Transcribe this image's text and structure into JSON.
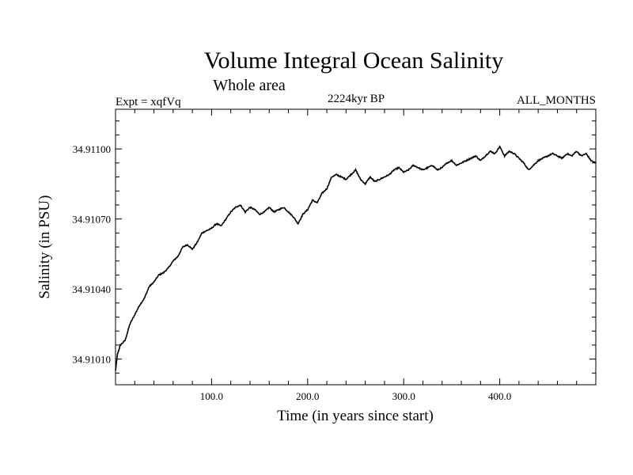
{
  "chart_data": {
    "type": "line",
    "title": "Volume Integral Ocean Salinity",
    "subtitle": "Whole area",
    "left_label": "Expt = xqfVq",
    "center_label": "2224kyr BP",
    "right_label": "ALL_MONTHS",
    "xlabel": "Time (in years since start)",
    "ylabel": "Salinity (in PSU)",
    "xlim": [
      0,
      500
    ],
    "ylim": [
      34.90999,
      34.91117
    ],
    "x_ticks": [
      100,
      200,
      300,
      400
    ],
    "x_tick_labels": [
      "100.0",
      "200.0",
      "300.0",
      "400.0"
    ],
    "y_ticks": [
      34.9101,
      34.9104,
      34.9107,
      34.911
    ],
    "y_tick_labels": [
      "34.91010",
      "34.91040",
      "34.91070",
      "34.91100"
    ],
    "series": [
      {
        "name": "salinity",
        "color": "#000000",
        "x": [
          0,
          2,
          5,
          10,
          15,
          20,
          25,
          30,
          35,
          40,
          45,
          50,
          55,
          60,
          65,
          70,
          75,
          80,
          85,
          90,
          95,
          100,
          105,
          110,
          115,
          120,
          125,
          130,
          135,
          140,
          145,
          150,
          155,
          160,
          165,
          170,
          175,
          180,
          185,
          190,
          195,
          200,
          205,
          210,
          215,
          220,
          225,
          230,
          235,
          240,
          245,
          250,
          255,
          260,
          265,
          270,
          275,
          280,
          285,
          290,
          295,
          300,
          305,
          310,
          315,
          320,
          325,
          330,
          335,
          340,
          345,
          350,
          355,
          360,
          365,
          370,
          375,
          380,
          385,
          390,
          395,
          400,
          405,
          410,
          415,
          420,
          425,
          430,
          435,
          440,
          445,
          450,
          455,
          460,
          465,
          470,
          475,
          480,
          485,
          490,
          495,
          500
        ],
        "values": [
          34.91005,
          34.91012,
          34.91016,
          34.91018,
          34.91025,
          34.91029,
          34.91033,
          34.91036,
          34.91041,
          34.91043,
          34.91046,
          34.91047,
          34.91049,
          34.91052,
          34.91054,
          34.91058,
          34.91059,
          34.91057,
          34.9106,
          34.91064,
          34.91065,
          34.91066,
          34.91068,
          34.91067,
          34.9107,
          34.91073,
          34.91075,
          34.91076,
          34.91073,
          34.91075,
          34.91074,
          34.91072,
          34.91073,
          34.91075,
          34.91073,
          34.91074,
          34.91075,
          34.91073,
          34.91071,
          34.91068,
          34.91072,
          34.91074,
          34.91078,
          34.91077,
          34.91081,
          34.91083,
          34.91088,
          34.91089,
          34.91088,
          34.91087,
          34.91089,
          34.91091,
          34.91087,
          34.91085,
          34.91088,
          34.91086,
          34.91087,
          34.91088,
          34.91089,
          34.91091,
          34.91092,
          34.9109,
          34.91091,
          34.91093,
          34.91092,
          34.91091,
          34.91092,
          34.91093,
          34.91091,
          34.91092,
          34.91094,
          34.91095,
          34.91093,
          34.91094,
          34.91095,
          34.91096,
          34.91097,
          34.91095,
          34.91097,
          34.91099,
          34.91098,
          34.91101,
          34.91097,
          34.91099,
          34.91098,
          34.91096,
          34.91094,
          34.91091,
          34.91093,
          34.91095,
          34.91096,
          34.91097,
          34.91098,
          34.91097,
          34.91096,
          34.91098,
          34.91097,
          34.91099,
          34.91097,
          34.91098,
          34.91095,
          34.91094
        ]
      }
    ]
  }
}
